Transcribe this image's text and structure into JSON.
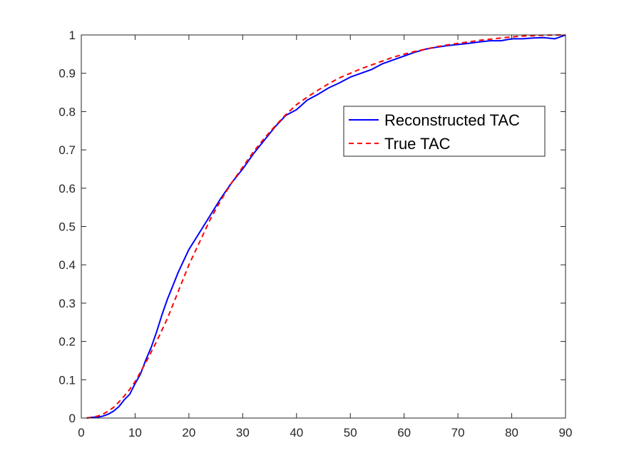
{
  "chart_data": {
    "type": "line",
    "title": "",
    "xlabel": "",
    "ylabel": "",
    "xlim": [
      0,
      90
    ],
    "ylim": [
      0,
      1
    ],
    "x_ticks": [
      "0",
      "10",
      "20",
      "30",
      "40",
      "50",
      "60",
      "70",
      "80",
      "90"
    ],
    "y_ticks": [
      "0",
      "0.1",
      "0.2",
      "0.3",
      "0.4",
      "0.5",
      "0.6",
      "0.7",
      "0.8",
      "0.9",
      "1"
    ],
    "grid": false,
    "legend_placement": "upper-right-inside",
    "series": [
      {
        "name": "Reconstructed TAC",
        "style": "solid",
        "color": "#0000ff",
        "x": [
          1,
          2,
          3,
          4,
          5,
          6,
          7,
          8,
          9,
          10,
          11,
          12,
          13,
          14,
          15,
          16,
          17,
          18,
          19,
          20,
          22,
          24,
          26,
          28,
          30,
          32,
          34,
          36,
          38,
          40,
          42,
          44,
          46,
          48,
          50,
          52,
          54,
          56,
          58,
          60,
          62,
          64,
          66,
          68,
          70,
          72,
          74,
          76,
          78,
          80,
          82,
          84,
          86,
          88,
          90
        ],
        "y": [
          0.0,
          0.002,
          0.002,
          0.005,
          0.01,
          0.018,
          0.03,
          0.048,
          0.062,
          0.09,
          0.115,
          0.152,
          0.185,
          0.225,
          0.27,
          0.31,
          0.345,
          0.38,
          0.41,
          0.44,
          0.485,
          0.53,
          0.575,
          0.615,
          0.65,
          0.69,
          0.725,
          0.76,
          0.79,
          0.805,
          0.83,
          0.845,
          0.862,
          0.875,
          0.89,
          0.9,
          0.91,
          0.925,
          0.935,
          0.945,
          0.955,
          0.963,
          0.968,
          0.972,
          0.975,
          0.978,
          0.982,
          0.985,
          0.985,
          0.99,
          0.99,
          0.992,
          0.993,
          0.99,
          1.0
        ]
      },
      {
        "name": "True TAC",
        "style": "dashed",
        "color": "#ff0000",
        "x": [
          1,
          2,
          3,
          4,
          5,
          6,
          7,
          8,
          9,
          10,
          12,
          14,
          16,
          18,
          20,
          22,
          24,
          26,
          28,
          30,
          32,
          34,
          36,
          38,
          40,
          42,
          44,
          46,
          48,
          50,
          52,
          54,
          56,
          58,
          60,
          62,
          64,
          66,
          68,
          70,
          72,
          74,
          76,
          78,
          80,
          82,
          84,
          86,
          88,
          90
        ],
        "y": [
          0.0,
          0.002,
          0.005,
          0.01,
          0.018,
          0.028,
          0.042,
          0.058,
          0.075,
          0.095,
          0.145,
          0.2,
          0.26,
          0.33,
          0.4,
          0.46,
          0.52,
          0.57,
          0.615,
          0.655,
          0.695,
          0.73,
          0.762,
          0.792,
          0.818,
          0.838,
          0.856,
          0.873,
          0.888,
          0.9,
          0.912,
          0.922,
          0.932,
          0.942,
          0.95,
          0.957,
          0.963,
          0.969,
          0.974,
          0.978,
          0.982,
          0.986,
          0.989,
          0.992,
          0.995,
          0.997,
          0.998,
          0.999,
          1.0,
          1.0
        ]
      }
    ]
  }
}
